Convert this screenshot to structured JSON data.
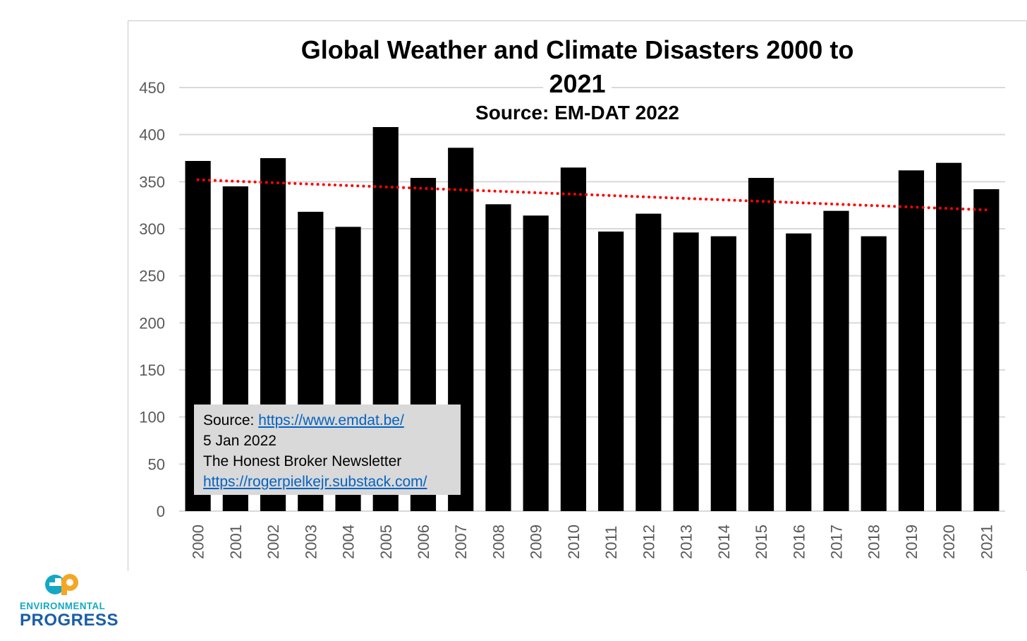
{
  "chart_data": {
    "type": "bar",
    "title_line1": "Global Weather and Climate Disasters 2000 to",
    "title_line2": "2021",
    "subtitle": "Source: EM-DAT 2022",
    "categories": [
      "2000",
      "2001",
      "2002",
      "2003",
      "2004",
      "2005",
      "2006",
      "2007",
      "2008",
      "2009",
      "2010",
      "2011",
      "2012",
      "2013",
      "2014",
      "2015",
      "2016",
      "2017",
      "2018",
      "2019",
      "2020",
      "2021"
    ],
    "values": [
      372,
      345,
      375,
      318,
      302,
      408,
      354,
      386,
      326,
      314,
      365,
      297,
      316,
      296,
      292,
      354,
      295,
      319,
      292,
      362,
      370,
      342
    ],
    "ylim": [
      0,
      450
    ],
    "yticks": [
      0,
      50,
      100,
      150,
      200,
      250,
      300,
      350,
      400,
      450
    ],
    "grid": true,
    "trendline": {
      "style": "dotted",
      "start": 352,
      "end": 320
    },
    "colors": {
      "bar": "#000000",
      "trend": "#ff0000",
      "grid": "#d9d9d9"
    }
  },
  "source_box": {
    "source_prefix": "Source: ",
    "source_link": "https://www.emdat.be/",
    "date": "5 Jan 2022",
    "newsletter": "The Honest Broker Newsletter",
    "newsletter_link": "https://rogerpielkejr.substack.com/"
  },
  "logo": {
    "line1": "ENVIRONMENTAL",
    "line2": "PROGRESS",
    "mark_icon": "ep-logo-icon",
    "colors": {
      "primary": "#13a8c4",
      "secondary": "#1a5ea8",
      "accent": "#f5a623"
    }
  }
}
